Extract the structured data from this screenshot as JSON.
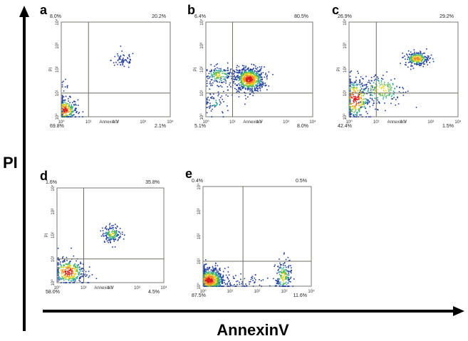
{
  "figure": {
    "y_axis_title": "PI",
    "x_axis_title": "AnnexinV"
  },
  "chart_data": [
    {
      "type": "scatter",
      "panel_label": "a",
      "xlabel": "Annexin V",
      "ylabel": "PI",
      "xlim": [
        1,
        10000
      ],
      "ylim": [
        1,
        10000
      ],
      "x_scale": "log",
      "y_scale": "log",
      "x_tick_labels": [
        "10⁰",
        "10¹",
        "10²",
        "10³",
        "10⁴"
      ],
      "y_tick_labels": [
        "10⁰",
        "10¹",
        "10²",
        "10³",
        "10⁴"
      ],
      "quadrant_gate": {
        "x": 10,
        "y": 10
      },
      "quadrant_percentages": {
        "upper_left": "8.0%",
        "upper_right": "20.2%",
        "lower_left": "69.8%",
        "lower_right": "2.1%"
      },
      "populations": [
        {
          "center_x": 1.2,
          "center_y": 2.0,
          "spread_x": 0.25,
          "spread_y": 0.25,
          "count": 320
        },
        {
          "center_x": 1.2,
          "center_y": 13,
          "spread_x": 0.2,
          "spread_y": 0.25,
          "count": 12
        },
        {
          "center_x": 180,
          "center_y": 260,
          "spread_x": 0.22,
          "spread_y": 0.18,
          "count": 60
        }
      ]
    },
    {
      "type": "scatter",
      "panel_label": "b",
      "xlabel": "Annexin V",
      "ylabel": "PI",
      "xlim": [
        1,
        10000
      ],
      "ylim": [
        1,
        10000
      ],
      "x_scale": "log",
      "y_scale": "log",
      "x_tick_labels": [
        "10⁰",
        "10¹",
        "10²",
        "10³",
        "10⁴"
      ],
      "y_tick_labels": [
        "10⁰",
        "10¹",
        "10²",
        "10³",
        "10⁴"
      ],
      "quadrant_gate": {
        "x": 10,
        "y": 10
      },
      "quadrant_percentages": {
        "upper_left": "6.4%",
        "upper_right": "80.5%",
        "lower_left": "5.1%",
        "lower_right": "8.0%"
      },
      "populations": [
        {
          "center_x": 40,
          "center_y": 40,
          "spread_x": 0.28,
          "spread_y": 0.26,
          "count": 700
        },
        {
          "center_x": 3,
          "center_y": 60,
          "spread_x": 0.28,
          "spread_y": 0.2,
          "count": 160
        },
        {
          "center_x": 2,
          "center_y": 4,
          "spread_x": 0.3,
          "spread_y": 0.3,
          "count": 70
        }
      ]
    },
    {
      "type": "scatter",
      "panel_label": "c",
      "xlabel": "Annexin V",
      "ylabel": "PI",
      "xlim": [
        1,
        10000
      ],
      "ylim": [
        1,
        10000
      ],
      "x_scale": "log",
      "y_scale": "log",
      "x_tick_labels": [
        "10⁰",
        "10¹",
        "10²",
        "10³",
        "10⁴"
      ],
      "y_tick_labels": [
        "10⁰",
        "10¹",
        "10²",
        "10³",
        "10⁴"
      ],
      "quadrant_gate": {
        "x": 10,
        "y": 10
      },
      "quadrant_percentages": {
        "upper_left": "26.9%",
        "upper_right": "29.2%",
        "lower_left": "42.4%",
        "lower_right": "1.5%"
      },
      "populations": [
        {
          "center_x": 1.6,
          "center_y": 6,
          "spread_x": 0.3,
          "spread_y": 0.45,
          "count": 330
        },
        {
          "center_x": 15,
          "center_y": 15,
          "spread_x": 0.45,
          "spread_y": 0.35,
          "count": 180
        },
        {
          "center_x": 300,
          "center_y": 300,
          "spread_x": 0.22,
          "spread_y": 0.15,
          "count": 240
        }
      ]
    },
    {
      "type": "scatter",
      "panel_label": "d",
      "xlabel": "Annexin V",
      "ylabel": "PI",
      "xlim": [
        1,
        10000
      ],
      "ylim": [
        1,
        10000
      ],
      "x_scale": "log",
      "y_scale": "log",
      "x_tick_labels": [
        "10⁰",
        "10¹",
        "10²",
        "10³",
        "10⁴"
      ],
      "y_tick_labels": [
        "10⁰",
        "10¹",
        "10²",
        "10³",
        "10⁴"
      ],
      "quadrant_gate": {
        "x": 10,
        "y": 10
      },
      "quadrant_percentages": {
        "upper_left": "1.6%",
        "upper_right": "35.8%",
        "lower_left": "58.0%",
        "lower_right": "4.5%"
      },
      "populations": [
        {
          "center_x": 2.5,
          "center_y": 3,
          "spread_x": 0.32,
          "spread_y": 0.28,
          "count": 330
        },
        {
          "center_x": 110,
          "center_y": 120,
          "spread_x": 0.18,
          "spread_y": 0.18,
          "count": 160
        }
      ]
    },
    {
      "type": "scatter",
      "panel_label": "e",
      "xlabel": "",
      "ylabel": "",
      "xlim": [
        1,
        10000
      ],
      "ylim": [
        1,
        10000
      ],
      "x_scale": "log",
      "y_scale": "log",
      "x_tick_labels": [
        "10⁰",
        "10¹",
        "10²",
        "10³",
        "10⁴"
      ],
      "y_tick_labels": [
        "10⁰",
        "10¹",
        "10²",
        "10³",
        "10⁴"
      ],
      "quadrant_gate": {
        "x": 30,
        "y": 10
      },
      "quadrant_percentages": {
        "upper_left": "0.4%",
        "upper_right": "0.5%",
        "lower_left": "87.5%",
        "lower_right": "11.6%"
      },
      "populations": [
        {
          "center_x": 1.6,
          "center_y": 1.8,
          "spread_x": 0.3,
          "spread_y": 0.25,
          "count": 800
        },
        {
          "center_x": 900,
          "center_y": 2.5,
          "spread_x": 0.15,
          "spread_y": 0.35,
          "count": 170
        },
        {
          "center_x": 40,
          "center_y": 1.4,
          "spread_x": 0.45,
          "spread_y": 0.15,
          "count": 60
        }
      ]
    }
  ]
}
